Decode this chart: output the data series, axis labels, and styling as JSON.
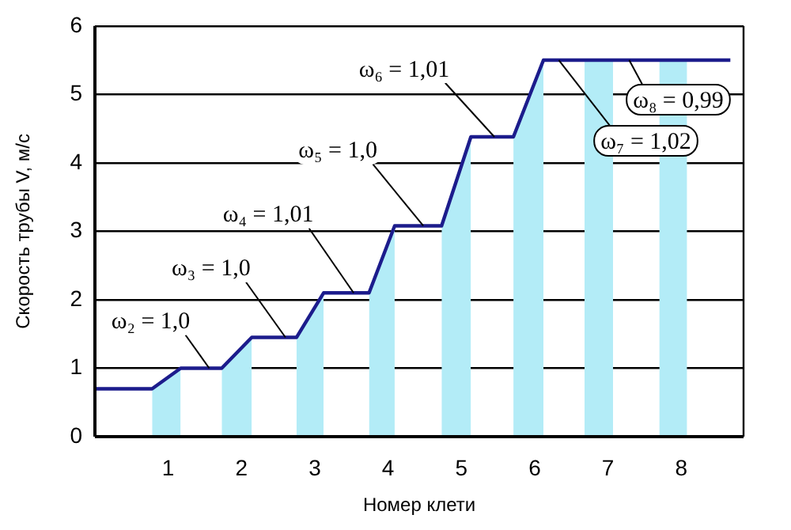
{
  "chart_data": {
    "type": "line",
    "xlabel": "Номер клети",
    "ylabel": "Скорость трубы V, м/с",
    "x": [
      0,
      0.78,
      1.17,
      1.73,
      2.14,
      2.75,
      3.12,
      3.74,
      4.09,
      4.73,
      5.13,
      5.71,
      6.12,
      8.67
    ],
    "series": [
      {
        "color": "#1c1c8c",
        "values": [
          0.7,
          0.7,
          1.0,
          1.0,
          1.45,
          1.45,
          2.1,
          2.1,
          3.08,
          3.08,
          4.38,
          4.38,
          5.5,
          5.5
        ]
      },
      {
        "type": "area",
        "color": "#b3ecf7",
        "x": [
          0.78,
          1.17
        ],
        "values": [
          0.7,
          1.0
        ]
      },
      {
        "type": "area",
        "color": "#b3ecf7",
        "x": [
          1.73,
          2.14
        ],
        "values": [
          1.0,
          1.45
        ]
      },
      {
        "type": "area",
        "color": "#b3ecf7",
        "x": [
          2.75,
          3.12
        ],
        "values": [
          1.45,
          2.1
        ]
      },
      {
        "type": "area",
        "color": "#b3ecf7",
        "x": [
          3.74,
          4.09
        ],
        "values": [
          2.1,
          3.08
        ]
      },
      {
        "type": "area",
        "color": "#b3ecf7",
        "x": [
          4.73,
          5.13
        ],
        "values": [
          3.08,
          4.38
        ]
      },
      {
        "type": "area",
        "color": "#b3ecf7",
        "x": [
          5.71,
          6.12
        ],
        "values": [
          4.38,
          5.5
        ]
      },
      {
        "type": "area",
        "color": "#b3ecf7",
        "x": [
          6.68,
          7.07
        ],
        "values": [
          5.5,
          5.5
        ]
      },
      {
        "type": "area",
        "color": "#b3ecf7",
        "x": [
          7.7,
          8.08
        ],
        "values": [
          5.5,
          5.5
        ]
      }
    ],
    "xlim": [
      0,
      8.85
    ],
    "xticks": [
      1,
      2,
      3,
      4,
      5,
      6,
      7,
      8
    ],
    "ylim": [
      0,
      6
    ],
    "yticks": [
      0,
      1,
      2,
      3,
      4,
      5,
      6
    ],
    "grid": "y",
    "legend": false,
    "marker": "none",
    "line_style": "solid",
    "annotations": [
      {
        "text": "ω₂ = 1,0",
        "x": 1.56,
        "y": 1.0
      },
      {
        "text": "ω₃ = 1,0",
        "x": 2.6,
        "y": 1.45
      },
      {
        "text": "ω₄ = 1,01",
        "x": 3.53,
        "y": 2.1
      },
      {
        "text": "ω₅ = 1,0",
        "x": 4.48,
        "y": 3.08
      },
      {
        "text": "ω₆ = 1,01",
        "x": 5.45,
        "y": 4.38
      },
      {
        "text": "ω₇ = 1,02",
        "x": 6.33,
        "y": 5.5
      },
      {
        "text": "ω₈ = 0,99",
        "x": 7.29,
        "y": 5.5
      }
    ]
  }
}
